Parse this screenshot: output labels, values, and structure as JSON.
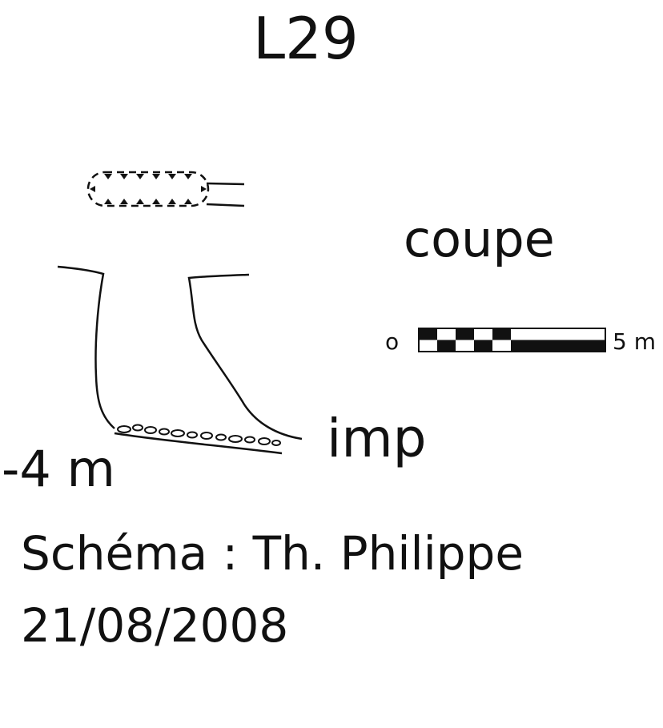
{
  "title": "L29",
  "view_label": "coupe",
  "scale_bar": {
    "start_label": "o",
    "end_label": "5 m"
  },
  "bottom_label": "imp",
  "depth_label": "-4 m",
  "credit": "Schéma : Th. Philippe",
  "date": "21/08/2008",
  "colors": {
    "ink": "#111111",
    "background": "#ffffff"
  }
}
